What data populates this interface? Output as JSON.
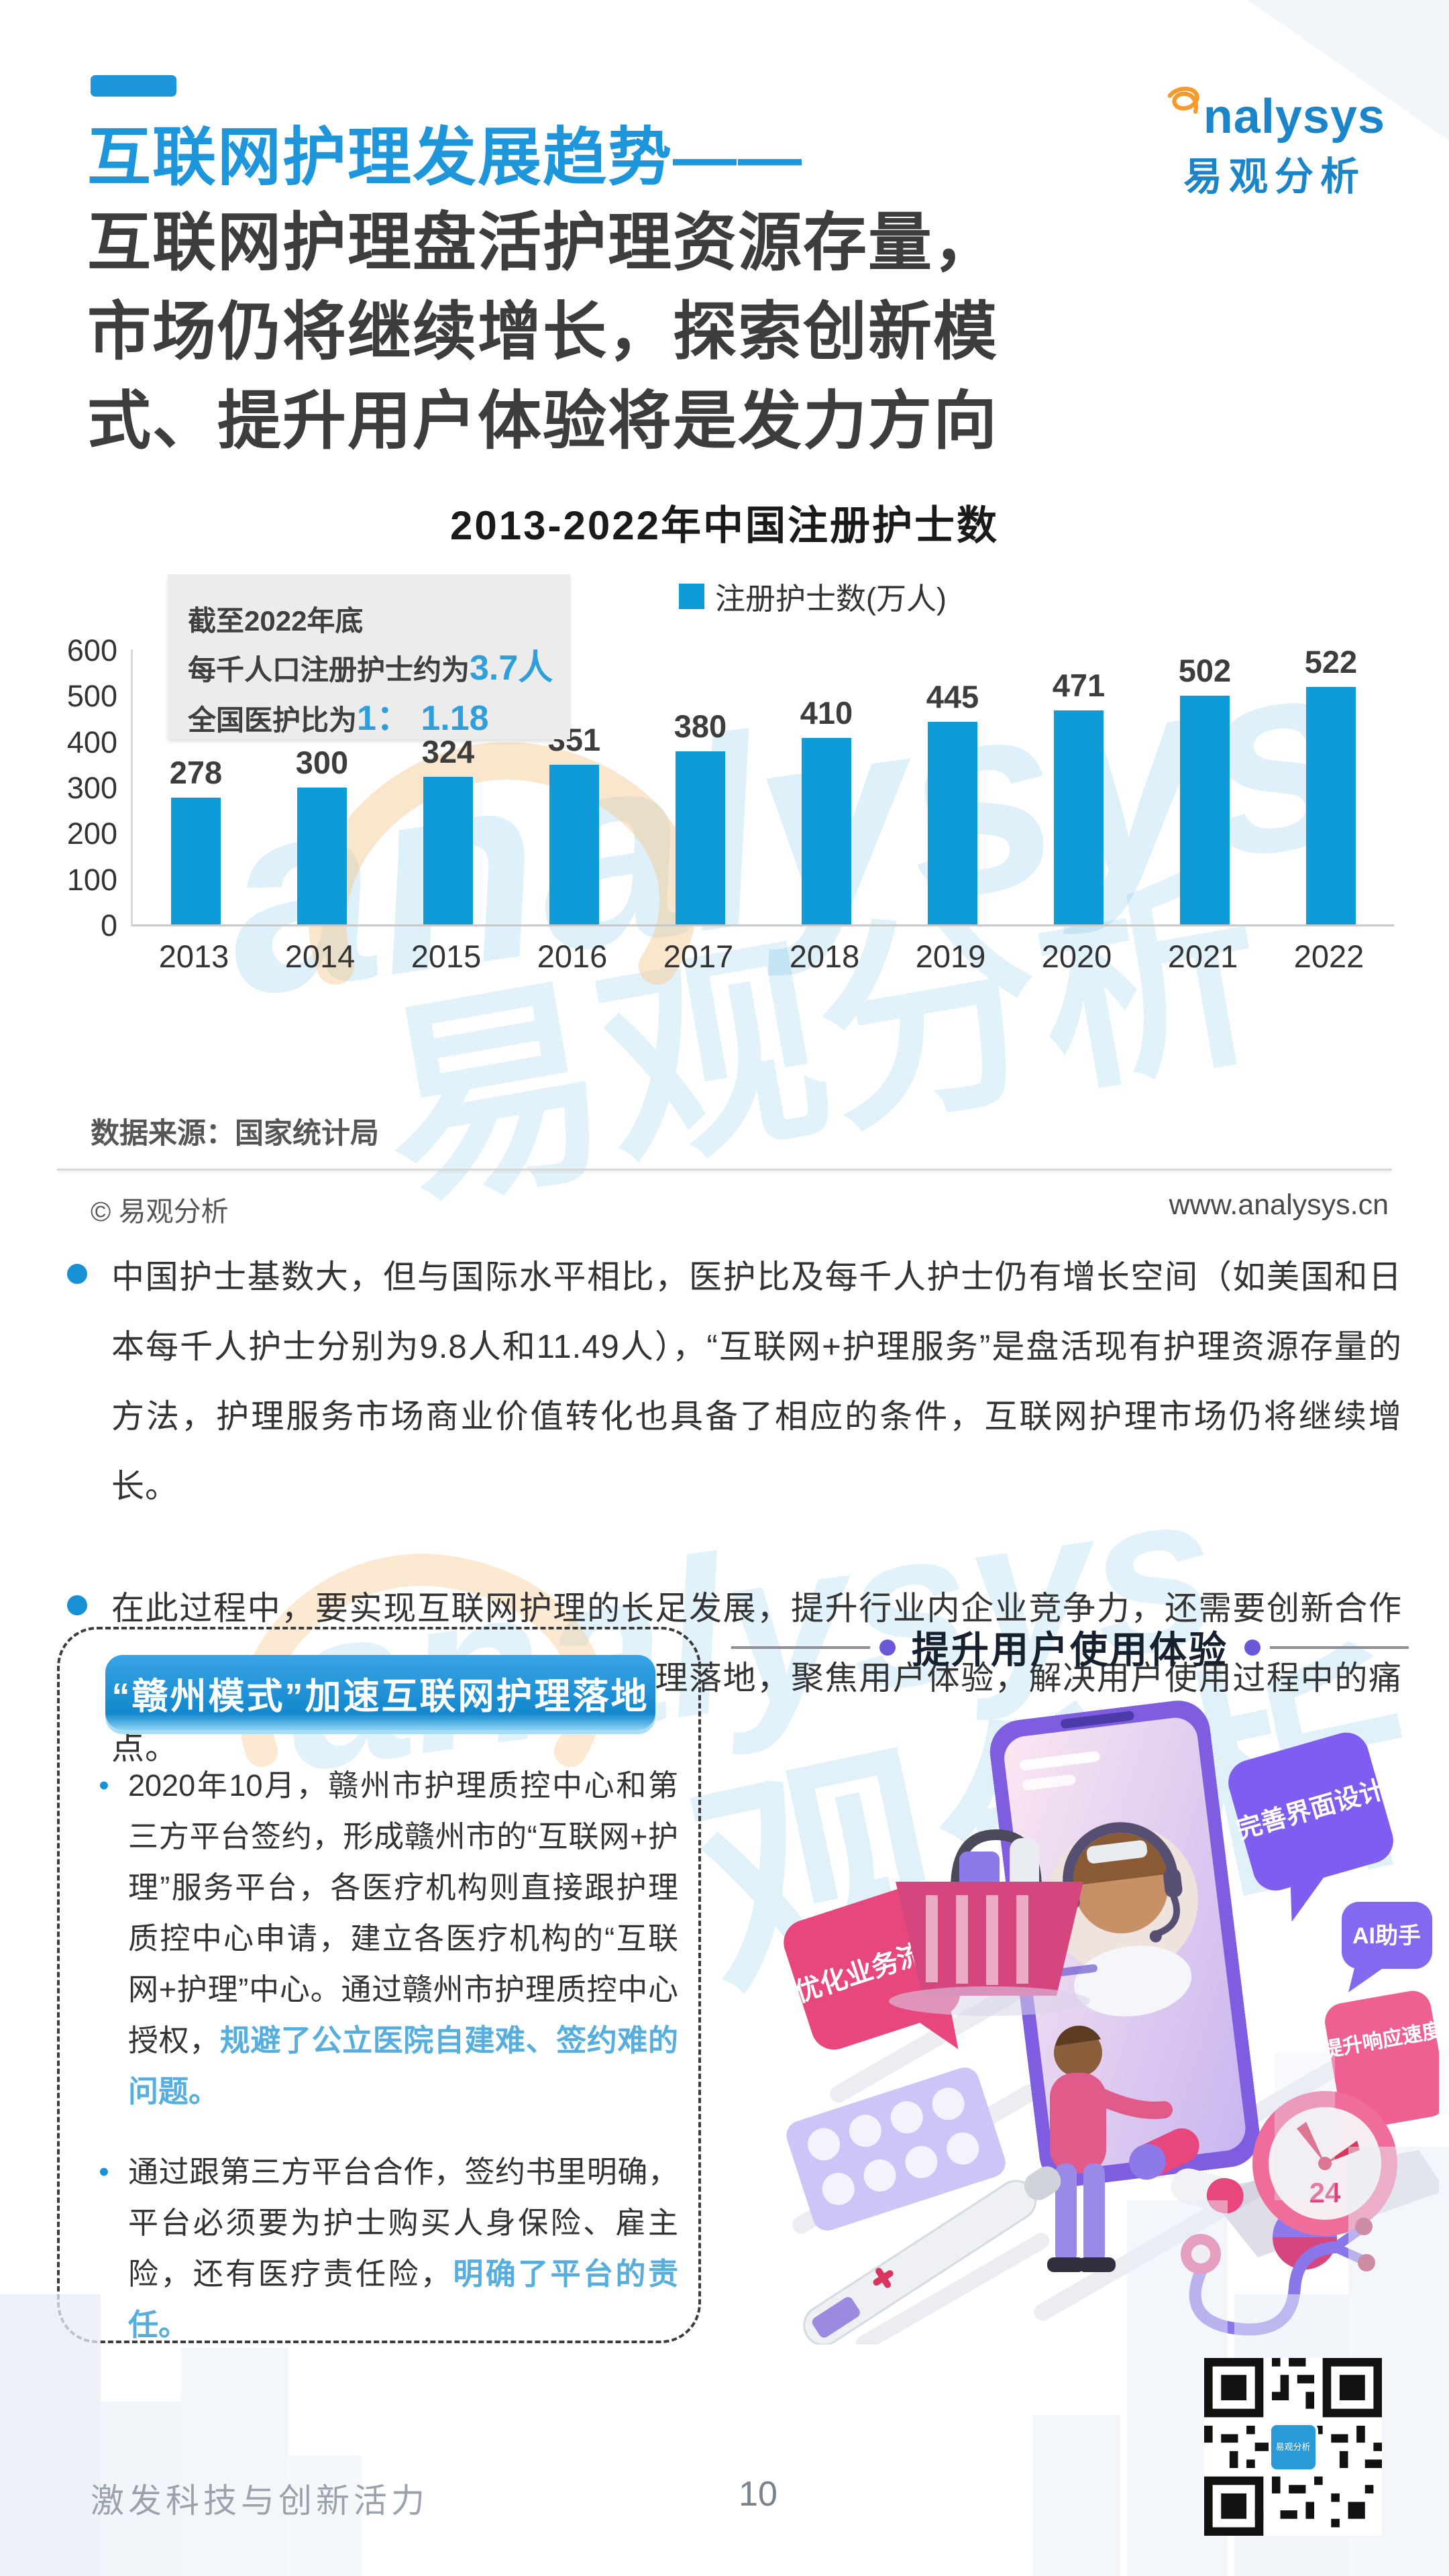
{
  "header": {
    "accent_color": "#1e96dc",
    "title": "互联网护理发展趋势——",
    "subtitle_line1": "互联网护理盘活护理资源存量，",
    "subtitle_line2": "市场仍将继续增长，探索创新模",
    "subtitle_line3": "式、提升用户体验将是发力方向",
    "logo": {
      "brand": "nalysys",
      "brand_cn": "易观分析"
    }
  },
  "chart_data": {
    "type": "bar",
    "title": "2013-2022年中国注册护士数",
    "legend": "注册护士数(万人)",
    "categories": [
      "2013",
      "2014",
      "2015",
      "2016",
      "2017",
      "2018",
      "2019",
      "2020",
      "2021",
      "2022"
    ],
    "values": [
      278,
      300,
      324,
      351,
      380,
      410,
      445,
      471,
      502,
      522
    ],
    "ylim": [
      0,
      600
    ],
    "yticks": [
      600,
      500,
      400,
      300,
      200,
      100,
      0
    ],
    "bar_color": "#0f9ad8",
    "xlabel": "",
    "ylabel": "",
    "grid": "off",
    "legend_position": "top-center"
  },
  "infobox": {
    "line1": "截至2022年底",
    "line2_prefix": "每千人口注册护士约为",
    "line2_highlight": "3.7人",
    "line3_prefix": "全国医护比为",
    "line3_highlight": "1： 1.18"
  },
  "source_row": {
    "source": "数据来源：国家统计局",
    "copyright": "© 易观分析",
    "website": "www.analysys.cn"
  },
  "bullets": [
    "中国护士基数大，但与国际水平相比，医护比及每千人护士仍有增长空间（如美国和日本每千人护士分别为9.8人和11.49人），“互联网+护理服务”是盘活现有护理资源存量的方法，护理服务市场商业价值转化也具备了相应的条件，互联网护理市场仍将继续增长。",
    "在此过程中，要实现互联网护理的长足发展，提升行业内企业竞争力，还需要创新合作模式，以更灵活的方式推进互联网护理落地，聚焦用户体验，解决用户使用过程中的痛点。"
  ],
  "case_box": {
    "header": "“赣州模式”加速互联网护理落地",
    "items": [
      {
        "marker": "•",
        "pre": "2020年10月，赣州市护理质控中心和第三方平台签约，形成赣州市的“互联网+护理”服务平台，各医疗机构则直接跟护理质控中心申请，建立各医疗机构的“互联网+护理”中心。通过赣州市护理质控中心授权，",
        "highlight": "规避了公立医院自建难、签约难的问题。"
      },
      {
        "marker": "•",
        "pre": "通过跟第三方平台合作，签约书里明确，平台必须要为护士购买人身保险、雇主险，还有医疗责任险，",
        "highlight": "明确了平台的责任。"
      }
    ]
  },
  "right_panel": {
    "title": "提升用户使用体验",
    "bubble_optimize": "优化业务流程",
    "bubble_ui": "完善界面设计",
    "bubble_ai": "AI助手",
    "bubble_speed": "提升响应速度",
    "clock_label": "24"
  },
  "footer": {
    "slogan": "激发科技与创新活力",
    "page_number": "10",
    "qr_label": "易观分析"
  },
  "colors": {
    "accent_blue": "#1e96dc",
    "bar_blue": "#0f9ad8",
    "highlight_blue": "#55aede",
    "ribbon_blue": "#1d97dd",
    "pink": "#e8477e",
    "purple": "#7e5df0"
  }
}
